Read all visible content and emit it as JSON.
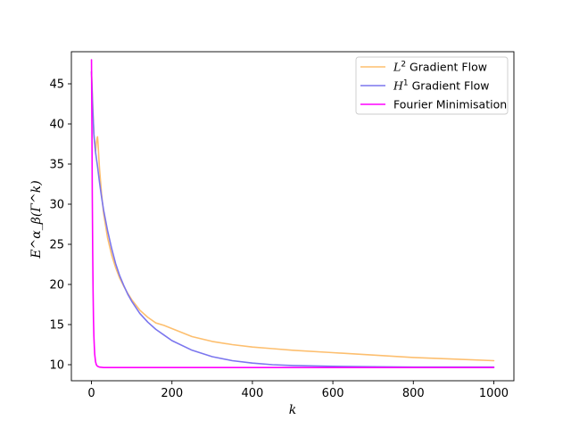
{
  "chart_data": {
    "type": "line",
    "xlabel": "k",
    "ylabel": "E^α_β(Γ^k)",
    "xlim": [
      -50,
      1050
    ],
    "ylim": [
      8,
      49
    ],
    "xticks": [
      0,
      200,
      400,
      600,
      800,
      1000
    ],
    "yticks": [
      10,
      15,
      20,
      25,
      30,
      35,
      40,
      45
    ],
    "grid": false,
    "legend": "top-right",
    "series": [
      {
        "name": "L² Gradient Flow",
        "legend_math": "L",
        "legend_sup": "2",
        "legend_rest": " Gradient Flow",
        "color": "#fdbf6f",
        "x": [
          0,
          3,
          6,
          10,
          12,
          14,
          15,
          16,
          18,
          20,
          25,
          30,
          40,
          50,
          60,
          70,
          80,
          90,
          100,
          120,
          140,
          160,
          180,
          200,
          250,
          300,
          350,
          400,
          450,
          500,
          600,
          700,
          800,
          900,
          1000
        ],
        "y": [
          46.5,
          42.5,
          38.5,
          36.6,
          37.6,
          38.2,
          38.4,
          37.8,
          36.0,
          34.4,
          31.3,
          28.9,
          25.8,
          23.7,
          22.1,
          20.8,
          19.8,
          18.9,
          18.1,
          16.8,
          15.9,
          15.2,
          14.9,
          14.5,
          13.5,
          12.9,
          12.5,
          12.2,
          12.0,
          11.8,
          11.5,
          11.2,
          10.9,
          10.7,
          10.5
        ]
      },
      {
        "name": "H¹ Gradient Flow",
        "legend_math": "H",
        "legend_sup": "1",
        "legend_rest": " Gradient Flow",
        "color": "#7b76ee",
        "x": [
          0,
          3,
          6,
          10,
          15,
          20,
          25,
          30,
          40,
          50,
          60,
          70,
          80,
          90,
          100,
          120,
          140,
          160,
          180,
          200,
          250,
          300,
          350,
          400,
          450,
          500,
          600,
          700,
          800,
          900,
          1000
        ],
        "y": [
          46.5,
          42.0,
          38.7,
          36.5,
          34.7,
          32.7,
          30.9,
          29.3,
          26.7,
          24.5,
          22.6,
          21.1,
          19.9,
          18.8,
          17.9,
          16.4,
          15.3,
          14.4,
          13.7,
          13.0,
          11.8,
          11.0,
          10.5,
          10.2,
          10.0,
          9.9,
          9.8,
          9.75,
          9.7,
          9.7,
          9.7
        ]
      },
      {
        "name": "Fourier Minimisation",
        "legend_math": "",
        "legend_sup": "",
        "legend_rest": "Fourier Minimisation",
        "color": "#ff00ff",
        "x": [
          0,
          1,
          2,
          3,
          4,
          5,
          6,
          7,
          8,
          10,
          12,
          15,
          20,
          30,
          50,
          100,
          200,
          400,
          600,
          800,
          1000
        ],
        "y": [
          48.0,
          40.0,
          31.0,
          24.0,
          19.0,
          15.5,
          13.5,
          12.3,
          11.3,
          10.4,
          10.0,
          9.8,
          9.7,
          9.65,
          9.65,
          9.65,
          9.65,
          9.65,
          9.65,
          9.65,
          9.65
        ]
      }
    ]
  }
}
